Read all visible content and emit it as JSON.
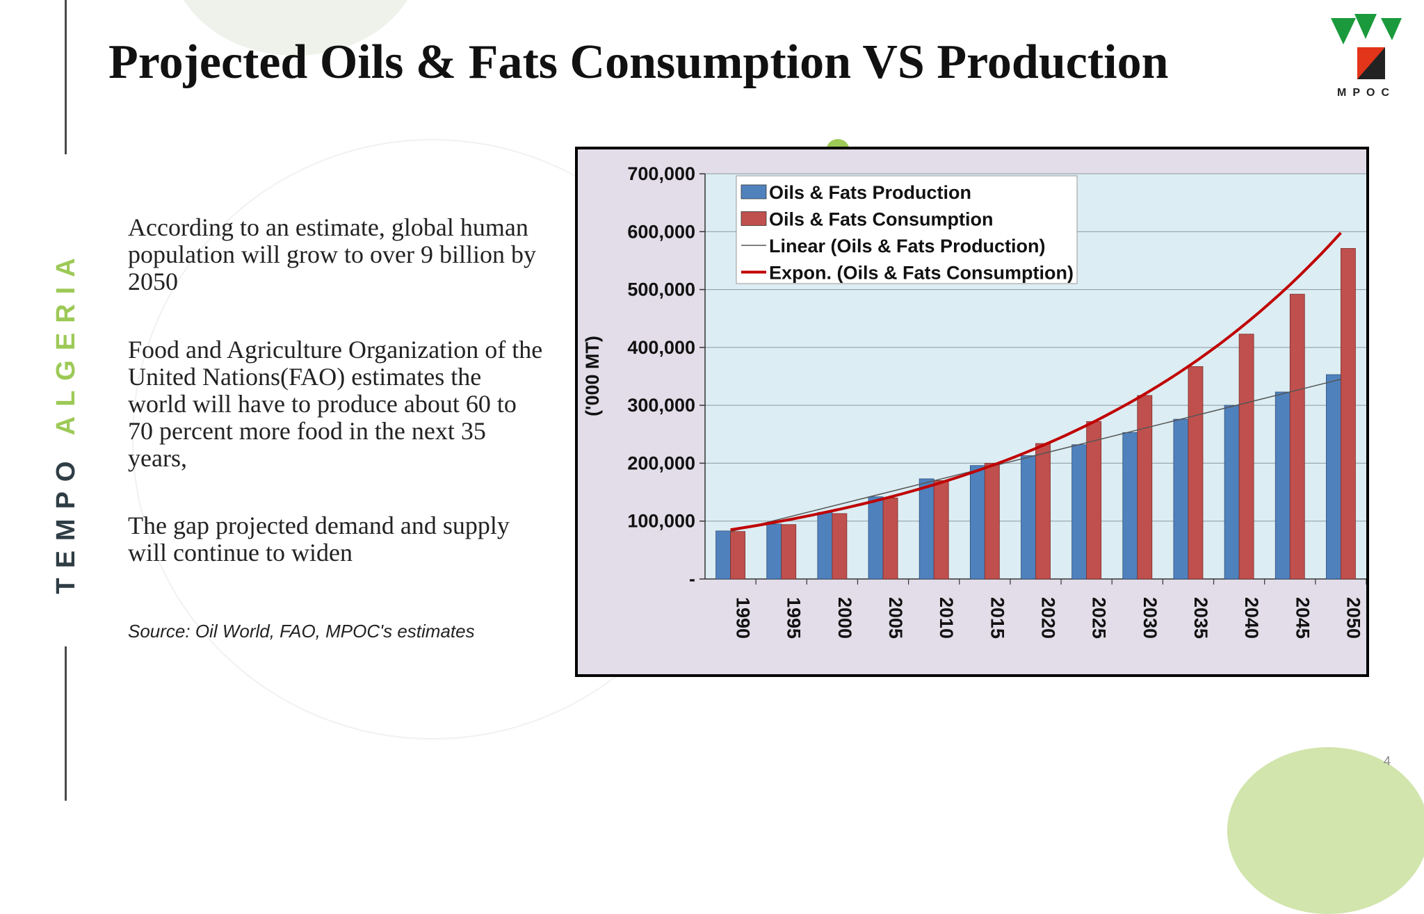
{
  "slide": {
    "title": "Projected Oils & Fats Consumption VS Production",
    "side_brand": {
      "word1": "TEMPO",
      "word2": "ALGERIA"
    },
    "logo": {
      "icon": "mpoc-logo-icon",
      "text": "MPOC",
      "colors": [
        "#1a9a3c",
        "#e2351a",
        "#222222"
      ]
    },
    "paragraphs": [
      "According to an estimate, global human population will grow to over 9 billion by 2050",
      "Food and Agriculture Organization of  the United Nations(FAO) estimates the world will have to produce about 60 to 70 percent more food in the next 35 years,",
      "The gap projected demand and supply will continue to widen"
    ],
    "source": "Source: Oil World, FAO, MPOC's estimates",
    "page_number": "4"
  },
  "colors": {
    "title": "#111111",
    "brand_dark": "#2f3d45",
    "brand_green": "#9dc956",
    "production_bar": "#4f81bd",
    "consumption_bar": "#c0504d",
    "trend_linear": "#555555",
    "trend_expon": "#c00000",
    "plot_bg": "#dcedf3",
    "chart_bg": "#e2dde8"
  },
  "chart_data": {
    "type": "bar",
    "title": "",
    "xlabel": "",
    "ylabel": "('000 MT)",
    "ylim": [
      0,
      700000
    ],
    "y_ticks": [
      0,
      100000,
      200000,
      300000,
      400000,
      500000,
      600000,
      700000
    ],
    "y_tick_labels": [
      "-",
      "100,000",
      "200,000",
      "300,000",
      "400,000",
      "500,000",
      "600,000",
      "700,000"
    ],
    "categories": [
      "1990",
      "1995",
      "2000",
      "2005",
      "2010",
      "2015",
      "2020",
      "2025",
      "2030",
      "2035",
      "2040",
      "2045",
      "2050"
    ],
    "grid": true,
    "legend_position": "top-left",
    "series": [
      {
        "name": "Oils & Fats Production",
        "values": [
          83000,
          95000,
          115000,
          142000,
          173000,
          196000,
          213000,
          232000,
          253000,
          276000,
          300000,
          323000,
          353000
        ]
      },
      {
        "name": "Oils & Fats Consumption",
        "values": [
          82000,
          94000,
          113000,
          140000,
          170000,
          200000,
          234000,
          272000,
          317000,
          367000,
          423000,
          492000,
          571000
        ]
      }
    ],
    "trendlines": [
      {
        "name": "Linear (Oils & Fats Production)",
        "type": "linear",
        "start": 82000,
        "end": 345000
      },
      {
        "name": "Expon. (Oils & Fats Consumption)",
        "type": "exponential",
        "start": 85000,
        "end": 598000
      }
    ]
  }
}
